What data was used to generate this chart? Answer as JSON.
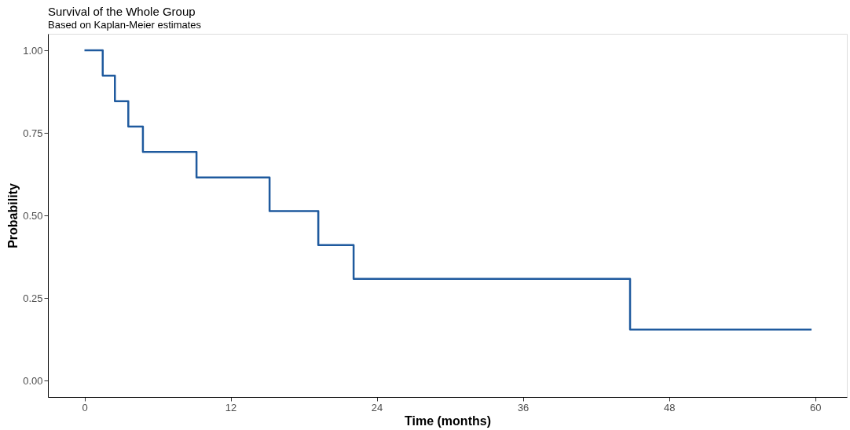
{
  "chart_data": {
    "type": "step",
    "title": "Survival of the Whole Group",
    "subtitle": "Based on Kaplan-Meier estimates",
    "xlabel": "Time (months)",
    "ylabel": "Probability",
    "x": [
      0,
      1.5,
      2.5,
      3.6,
      4.8,
      9.2,
      15.2,
      19.2,
      22.1,
      44.8,
      59.7
    ],
    "series": [
      {
        "color": "#1f5a9e",
        "values": [
          1.0,
          0.923,
          0.846,
          0.769,
          0.692,
          0.615,
          0.513,
          0.41,
          0.308,
          0.154,
          0.154
        ]
      }
    ],
    "xlim": [
      -3,
      62.6
    ],
    "ylim": [
      -0.05,
      1.05
    ],
    "xticks": [
      0,
      12,
      24,
      36,
      48,
      60
    ],
    "yticks": [
      {
        "value": 0,
        "label": "0.00"
      },
      {
        "value": 0.25,
        "label": "0.25"
      },
      {
        "value": 0.5,
        "label": "0.50"
      },
      {
        "value": 0.75,
        "label": "0.75"
      },
      {
        "value": 1,
        "label": "1.00"
      }
    ],
    "grid": false,
    "legend": false,
    "marker": "none",
    "line_style": "solid"
  }
}
